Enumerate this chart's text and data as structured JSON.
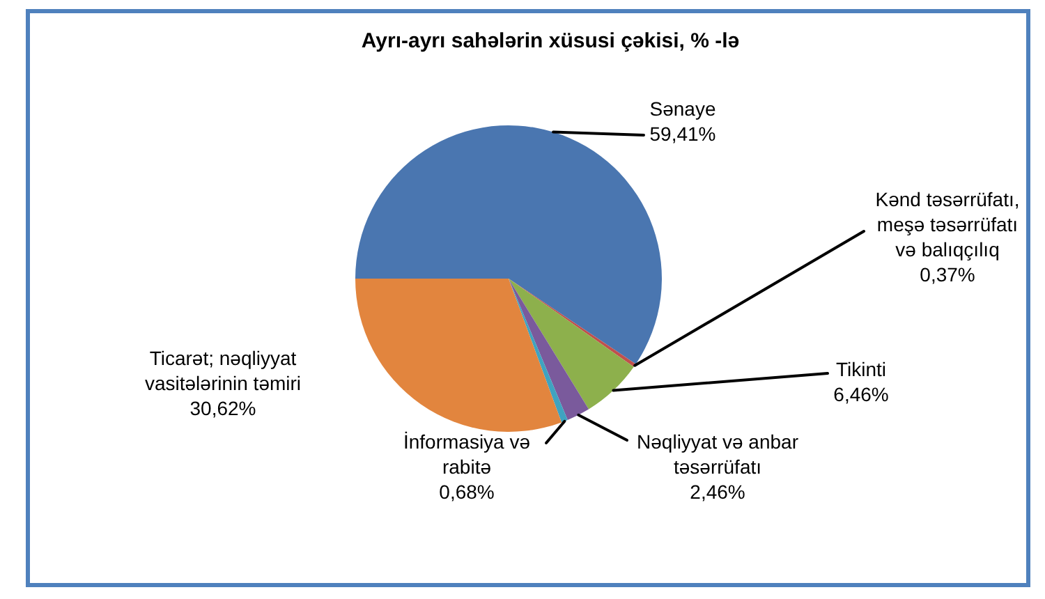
{
  "chart_data": {
    "type": "pie",
    "title": "Ayrı-ayrı sahələrin xüsusi çəkisi, % -lə",
    "categories": [
      "Sənaye",
      "Kənd təsərrüfatı, meşə təsərrüfatı və balıqçılıq",
      "Tikinti",
      "Nəqliyyat və anbar təsərrüfatı",
      "İnformasiya və rabitə",
      "Ticarət; nəqliyyat vasitələrinin təmiri"
    ],
    "values": [
      59.41,
      0.37,
      6.46,
      2.46,
      0.68,
      30.62
    ],
    "colors": [
      "#4a76b0",
      "#c0504d",
      "#8db04c",
      "#7a5a9c",
      "#3fa3c0",
      "#e2853e"
    ],
    "value_labels": [
      "59,41%",
      "0,37%",
      "6,46%",
      "2,46%",
      "0,68%",
      "30,62%"
    ]
  }
}
